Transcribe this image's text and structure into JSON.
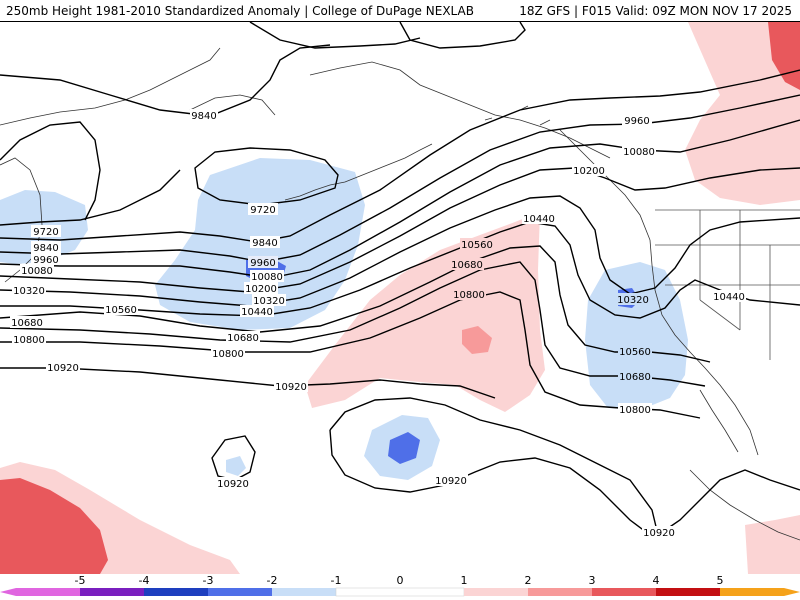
{
  "header": {
    "left_title": "250mb Height 1981-2010 Standardized Anomaly | College of DuPage NEXLAB",
    "right_title": "18Z GFS | F015 Valid: 09Z MON NOV 17 2025"
  },
  "colors": {
    "neg5": "#e066e0",
    "neg4": "#7a1fbf",
    "neg3": "#1e3fbf",
    "neg2": "#4f6fe8",
    "neg1": "#c8def7",
    "zero": "#ffffff",
    "pos1": "#fbd4d4",
    "pos2": "#f79a9a",
    "pos3": "#e8585c",
    "pos4": "#c30f12",
    "pos5": "#f5a21a"
  },
  "colorbar": {
    "ticks": [
      "-5",
      "-4",
      "-3",
      "-2",
      "-1",
      "0",
      "1",
      "2",
      "3",
      "4",
      "5"
    ]
  },
  "contour_labels": [
    {
      "text": "9840",
      "group": "north"
    },
    {
      "text": "9960",
      "group": "gulf-of-alaska"
    },
    {
      "text": "10080",
      "group": "gulf-of-alaska"
    },
    {
      "text": "10200",
      "group": "bc-coast"
    },
    {
      "text": "9720",
      "group": "bering-low"
    },
    {
      "text": "9840",
      "group": "bering-low"
    },
    {
      "text": "9960",
      "group": "bering-low"
    },
    {
      "text": "10080",
      "group": "bering-low"
    },
    {
      "text": "10200",
      "group": "bering-low"
    },
    {
      "text": "10320",
      "group": "bering-low"
    },
    {
      "text": "10440",
      "group": "bering-low"
    },
    {
      "text": "9720",
      "group": "kamchatka"
    },
    {
      "text": "9840",
      "group": "kamchatka"
    },
    {
      "text": "9960",
      "group": "kamchatka"
    },
    {
      "text": "10080",
      "group": "kamchatka"
    },
    {
      "text": "10320",
      "group": "west"
    },
    {
      "text": "10560",
      "group": "central"
    },
    {
      "text": "10680",
      "group": "west"
    },
    {
      "text": "10680",
      "group": "central"
    },
    {
      "text": "10800",
      "group": "west"
    },
    {
      "text": "10800",
      "group": "central"
    },
    {
      "text": "10920",
      "group": "west"
    },
    {
      "text": "10920",
      "group": "central"
    },
    {
      "text": "10440",
      "group": "ridge"
    },
    {
      "text": "10560",
      "group": "ridge"
    },
    {
      "text": "10680",
      "group": "ridge"
    },
    {
      "text": "10800",
      "group": "ridge"
    },
    {
      "text": "10320",
      "group": "california-low"
    },
    {
      "text": "10440",
      "group": "interior-west"
    },
    {
      "text": "10560",
      "group": "california-low"
    },
    {
      "text": "10680",
      "group": "california-low"
    },
    {
      "text": "10800",
      "group": "california-low"
    },
    {
      "text": "10920",
      "group": "hawaii"
    },
    {
      "text": "10920",
      "group": "south-west"
    },
    {
      "text": "10920",
      "group": "mexico"
    }
  ]
}
